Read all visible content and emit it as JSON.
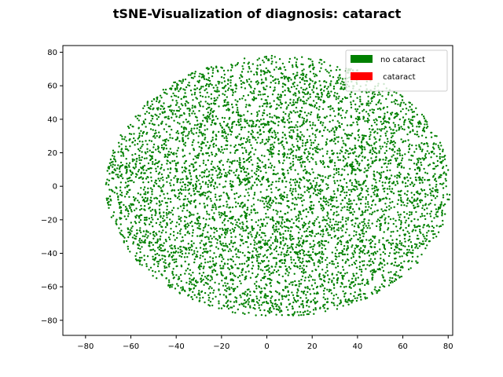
{
  "chart_data": {
    "type": "scatter",
    "title": "tSNE-Visualization of diagnosis: cataract",
    "xlabel": "",
    "ylabel": "",
    "xlim": [
      -90,
      82
    ],
    "ylim": [
      -89,
      84
    ],
    "xticks": [
      -80,
      -60,
      -40,
      -20,
      0,
      20,
      40,
      60,
      80
    ],
    "yticks": [
      -80,
      -60,
      -40,
      -20,
      0,
      20,
      40,
      60,
      80
    ],
    "grid": false,
    "legend_position": "top-right",
    "series": [
      {
        "name": "no cataract",
        "color": "#008000",
        "marker_size": 1.2,
        "distribution": {
          "shape": "ellipse",
          "center": [
            5,
            0
          ],
          "x_radius": 76,
          "y_radius": 78,
          "count": 6000
        }
      },
      {
        "name": " cataract",
        "color": "#ff0000",
        "marker_size": 1.2,
        "points": []
      }
    ]
  }
}
